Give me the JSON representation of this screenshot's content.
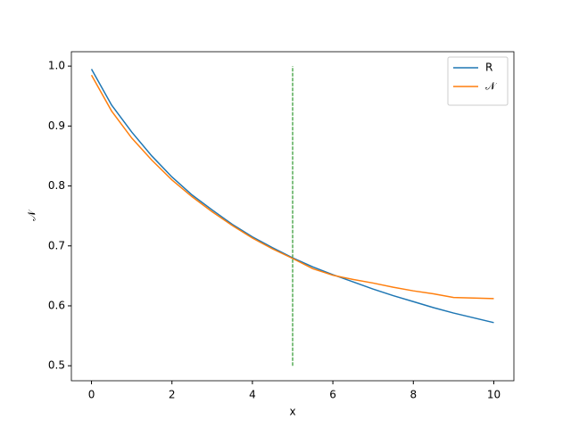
{
  "chart_data": {
    "type": "line",
    "x_label": "x",
    "y_label": "𝒩",
    "x": [
      0,
      0.5,
      1,
      1.5,
      2,
      2.5,
      3,
      3.5,
      4,
      4.5,
      5,
      5.5,
      6,
      6.5,
      7,
      7.5,
      8,
      8.5,
      9,
      9.5,
      10
    ],
    "series": [
      {
        "name": "R",
        "color": "#1f77b4",
        "values": [
          0.995,
          0.935,
          0.89,
          0.85,
          0.815,
          0.785,
          0.76,
          0.736,
          0.715,
          0.697,
          0.68,
          0.665,
          0.652,
          0.64,
          0.628,
          0.617,
          0.607,
          0.597,
          0.588,
          0.58,
          0.572
        ]
      },
      {
        "name": "𝒩",
        "color": "#ff7f0e",
        "values": [
          0.985,
          0.925,
          0.88,
          0.843,
          0.81,
          0.782,
          0.757,
          0.734,
          0.713,
          0.695,
          0.679,
          0.662,
          0.651,
          0.644,
          0.638,
          0.631,
          0.625,
          0.62,
          0.614,
          0.613,
          0.612
        ]
      }
    ],
    "vline": {
      "x": 5,
      "ymin": 0.5,
      "ymax": 1.0,
      "color": "green"
    },
    "xlim": [
      -0.5,
      10.5
    ],
    "ylim": [
      0.475,
      1.024
    ],
    "xticks": [
      0,
      2,
      4,
      6,
      8,
      10
    ],
    "yticks": [
      0.5,
      0.6,
      0.7,
      0.8,
      0.9,
      {
        "value": 1.0,
        "label": "1.0"
      }
    ],
    "legend": "upper right",
    "grid": false
  }
}
